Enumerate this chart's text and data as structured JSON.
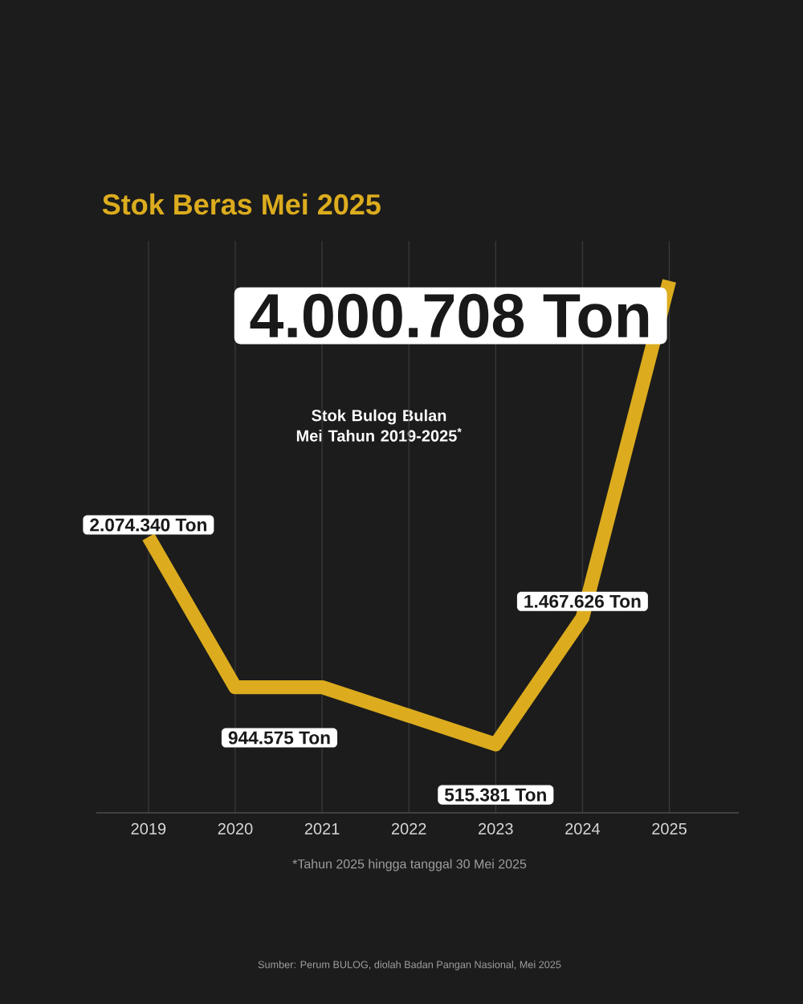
{
  "chart_data": {
    "type": "line",
    "title": "Stok Beras Mei 2025",
    "subtitle": "Stok Bulog Bulan Mei Tahun 2019-2025$^{*}$",
    "x": [
      2019,
      2020,
      2021,
      2023,
      2024,
      2025
    ],
    "values": [
      2074340,
      944575,
      944575,
      515381,
      1467626,
      4000708
    ],
    "value_labels": [
      "2.074.340 Ton",
      "944.575 Ton",
      null,
      "515.381 Ton",
      "1.467.626 Ton",
      "4.000.708 Ton"
    ],
    "color": "#dcac1e",
    "xlim": [
      2018.4,
      2025.8
    ],
    "ylim": [
      0,
      4300000
    ],
    "xticks": [
      2019,
      2020,
      2021,
      2022,
      2023,
      2024,
      2025
    ],
    "grid": "x",
    "tick_labels": "x",
    "marker": "none",
    "line_style": "solid",
    "annotations": [
      "*Tahun 2025 hingga tanggal 30 Mei 2025",
      "Sumber: Perum BULOG, diolah Badan Pangan Nasional, Mei 2025"
    ]
  }
}
